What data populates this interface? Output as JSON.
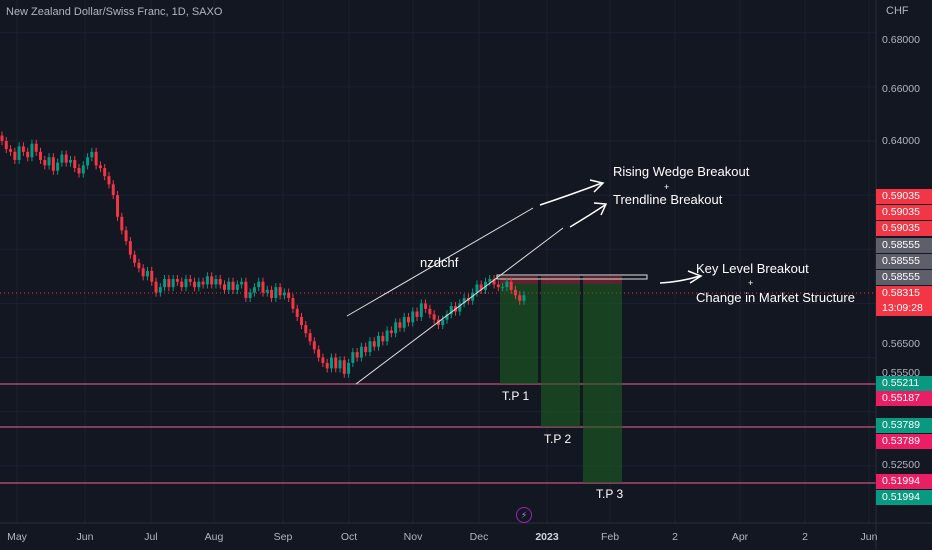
{
  "header": {
    "title": "New Zealand Dollar/Swiss Franc, 1D, SAXO",
    "currency": "CHF"
  },
  "chart_data": {
    "type": "candlestick",
    "symbol": "nzdchf",
    "y_ticks": [
      "0.68000",
      "0.66000",
      "0.64000",
      "0.56500",
      "0.55500",
      "0.52500"
    ],
    "x_ticks": [
      "May",
      "Jun",
      "Jul",
      "Aug",
      "Sep",
      "Oct",
      "Nov",
      "Dec",
      "2023",
      "Feb",
      "2",
      "Apr",
      "2",
      "Jun"
    ],
    "price_labels": [
      {
        "text": "0.59035",
        "color": "#f23645"
      },
      {
        "text": "0.59035",
        "color": "#f23645"
      },
      {
        "text": "0.59035",
        "color": "#f23645"
      },
      {
        "text": "0.58555",
        "color": "#5d606b"
      },
      {
        "text": "0.58555",
        "color": "#5d606b"
      },
      {
        "text": "0.58555",
        "color": "#5d606b"
      },
      {
        "text": "0.58315",
        "color": "#f23645"
      },
      {
        "text": "13:09:28",
        "color": "#f23645"
      },
      {
        "text": "0.55211",
        "color": "#089981"
      },
      {
        "text": "0.55187",
        "color": "#e91e63"
      },
      {
        "text": "0.53789",
        "color": "#089981"
      },
      {
        "text": "0.53789",
        "color": "#e91e63"
      },
      {
        "text": "0.51994",
        "color": "#e91e63"
      },
      {
        "text": "0.51994",
        "color": "#089981"
      }
    ],
    "closes": [
      0.64,
      0.637,
      0.636,
      0.633,
      0.638,
      0.636,
      0.634,
      0.639,
      0.636,
      0.633,
      0.631,
      0.634,
      0.629,
      0.632,
      0.635,
      0.632,
      0.633,
      0.63,
      0.628,
      0.631,
      0.634,
      0.636,
      0.631,
      0.63,
      0.627,
      0.624,
      0.62,
      0.612,
      0.607,
      0.603,
      0.598,
      0.595,
      0.593,
      0.59,
      0.592,
      0.588,
      0.584,
      0.586,
      0.589,
      0.586,
      0.589,
      0.588,
      0.586,
      0.589,
      0.588,
      0.586,
      0.588,
      0.587,
      0.59,
      0.587,
      0.589,
      0.587,
      0.585,
      0.588,
      0.585,
      0.587,
      0.588,
      0.582,
      0.584,
      0.586,
      0.588,
      0.584,
      0.585,
      0.582,
      0.586,
      0.583,
      0.584,
      0.582,
      0.578,
      0.575,
      0.572,
      0.569,
      0.566,
      0.563,
      0.56,
      0.558,
      0.556,
      0.56,
      0.556,
      0.559,
      0.554,
      0.558,
      0.562,
      0.56,
      0.564,
      0.562,
      0.566,
      0.564,
      0.568,
      0.566,
      0.57,
      0.569,
      0.573,
      0.571,
      0.575,
      0.573,
      0.577,
      0.575,
      0.58,
      0.578,
      0.576,
      0.574,
      0.572,
      0.574,
      0.576,
      0.579,
      0.577,
      0.58,
      0.582,
      0.581,
      0.584,
      0.587,
      0.585,
      0.588,
      0.589,
      0.587,
      0.586,
      0.586,
      0.588,
      0.585,
      0.583,
      0.581,
      0.583
    ],
    "annotations": {
      "rising_wedge": "Rising Wedge Breakout",
      "plus1": "+",
      "trendline": "Trendline Breakout",
      "key_level": "Key Level Breakout",
      "plus2": "+",
      "market_structure": "Change in Market Structure",
      "symbol_label": "nzdchf",
      "tp1": "T.P 1",
      "tp2": "T.P 2",
      "tp3": "T.P 3"
    },
    "levels": {
      "key_level": 0.5855,
      "tp1": 0.5521,
      "tp2": 0.5379,
      "tp3": 0.5199
    }
  }
}
